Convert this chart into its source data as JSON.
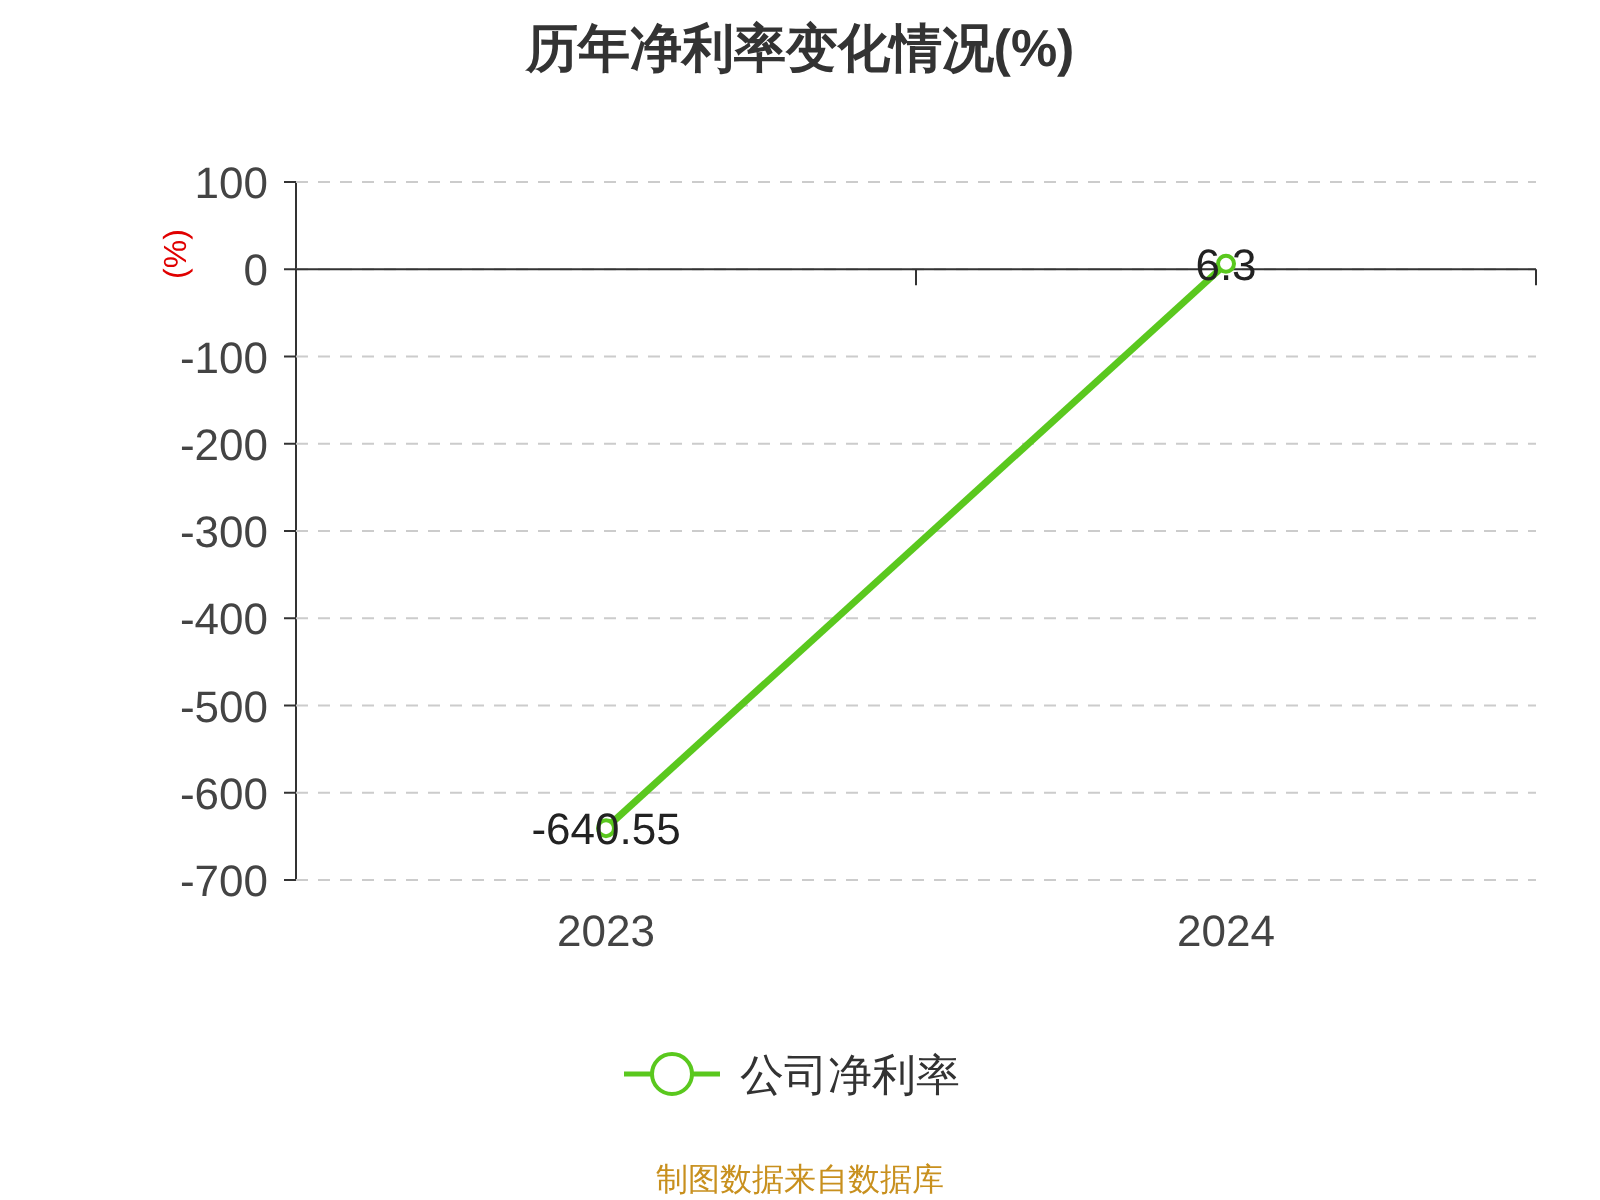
{
  "chart_data": {
    "type": "line",
    "title": "历年净利率变化情况(%)",
    "ylabel": "(%)",
    "categories": [
      "2023",
      "2024"
    ],
    "series": [
      {
        "name": "公司净利率",
        "color": "#5ac81e",
        "values": [
          -640.55,
          6.3
        ]
      }
    ],
    "ylim": [
      -700,
      100
    ],
    "yticks": [
      -700,
      -600,
      -500,
      -400,
      -300,
      -200,
      -100,
      0,
      100
    ],
    "grid": "y",
    "legend": "bottom",
    "marker": "circle",
    "line_style": "solid",
    "data_labels": true,
    "annotations": [
      "制图数据来自数据库"
    ]
  }
}
